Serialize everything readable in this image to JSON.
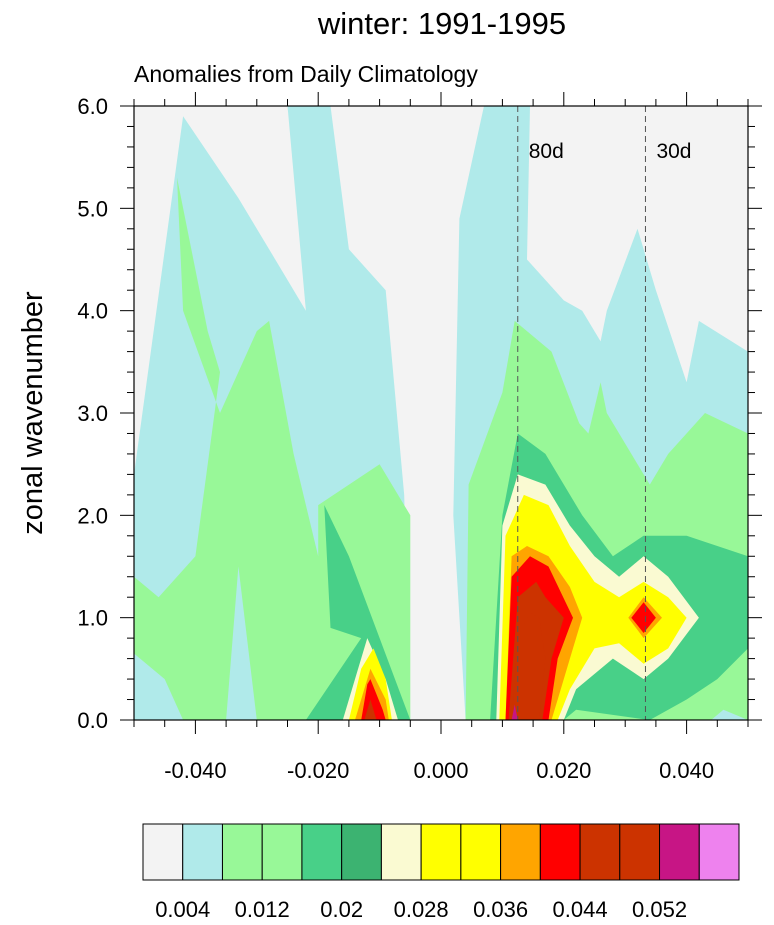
{
  "chart_data": {
    "type": "heatmap",
    "subtype": "filled-contour wavenumber-frequency spectrum",
    "title": "winter: 1991-1995",
    "subtitle": "Anomalies from Daily Climatology",
    "xlabel": "",
    "ylabel": "zonal wavenumber",
    "xlim": [
      -0.05,
      0.05
    ],
    "ylim": [
      0,
      6
    ],
    "x_ticks": [
      -0.04,
      -0.02,
      0.0,
      0.02,
      0.04
    ],
    "x_tick_labels": [
      "-0.040",
      "-0.020",
      "0.000",
      "0.020",
      "0.040"
    ],
    "y_ticks": [
      0,
      1,
      2,
      3,
      4,
      5,
      6
    ],
    "y_tick_labels": [
      "0.0",
      "1.0",
      "2.0",
      "3.0",
      "4.0",
      "5.0",
      "6.0"
    ],
    "reference_lines": [
      {
        "label": "80d",
        "frequency": 0.0125
      },
      {
        "label": "30d",
        "frequency": 0.0333
      }
    ],
    "colorbar": {
      "colors": [
        "#f3f3f3",
        "#b0eaea",
        "#98f898",
        "#98f898",
        "#48d088",
        "#3cb371",
        "#fafad2",
        "#ffff00",
        "#ffff00",
        "#ffa500",
        "#ff0000",
        "#cc3300",
        "#cc3300",
        "#c71585",
        "#ee82ee"
      ],
      "labels": [
        "0.004",
        "0.012",
        "0.02",
        "0.028",
        "0.036",
        "0.044",
        "0.052"
      ]
    },
    "contour_regions": [
      {
        "level": 1,
        "polygon": [
          [
            -0.05,
            0
          ],
          [
            -0.05,
            2.4
          ],
          [
            -0.042,
            5.9
          ],
          [
            -0.033,
            5.1
          ],
          [
            -0.026,
            4.4
          ],
          [
            -0.022,
            4.0
          ],
          [
            -0.025,
            6.0
          ],
          [
            -0.018,
            6.0
          ],
          [
            -0.015,
            4.6
          ],
          [
            -0.009,
            4.2
          ],
          [
            -0.006,
            2.2
          ],
          [
            -0.005,
            0
          ],
          [
            0.004,
            0
          ],
          [
            0.002,
            2.0
          ],
          [
            0.003,
            4.9
          ],
          [
            0.007,
            6.0
          ],
          [
            0.0145,
            6.0
          ],
          [
            0.014,
            4.5
          ],
          [
            0.02,
            4.1
          ],
          [
            0.023,
            4.0
          ],
          [
            0.026,
            3.7
          ],
          [
            0.027,
            4.0
          ],
          [
            0.032,
            4.8
          ],
          [
            0.035,
            4.2
          ],
          [
            0.04,
            3.3
          ],
          [
            0.042,
            3.9
          ],
          [
            0.05,
            3.6
          ],
          [
            0.05,
            0
          ]
        ]
      },
      {
        "level": 2,
        "polygon": [
          [
            -0.05,
            0.65
          ],
          [
            -0.05,
            1.4
          ],
          [
            -0.046,
            1.2
          ],
          [
            -0.04,
            1.6
          ],
          [
            -0.036,
            3.4
          ],
          [
            -0.038,
            3.8
          ],
          [
            -0.043,
            5.3
          ],
          [
            -0.042,
            4.0
          ],
          [
            -0.036,
            3.0
          ],
          [
            -0.03,
            3.8
          ],
          [
            -0.028,
            3.9
          ],
          [
            -0.024,
            2.6
          ],
          [
            -0.02,
            1.6
          ],
          [
            -0.02,
            2.1
          ],
          [
            -0.01,
            2.5
          ],
          [
            -0.005,
            2.0
          ],
          [
            -0.005,
            0
          ],
          [
            -0.03,
            0
          ],
          [
            -0.033,
            1.5
          ],
          [
            -0.035,
            0
          ],
          [
            -0.042,
            0
          ],
          [
            -0.045,
            0.4
          ]
        ]
      },
      {
        "level": 2,
        "polygon": [
          [
            0.004,
            0
          ],
          [
            0.0045,
            2.3
          ],
          [
            0.01,
            3.2
          ],
          [
            0.012,
            3.9
          ],
          [
            0.018,
            3.6
          ],
          [
            0.0225,
            2.9
          ],
          [
            0.024,
            2.8
          ],
          [
            0.026,
            3.3
          ],
          [
            0.027,
            3.0
          ],
          [
            0.034,
            2.3
          ],
          [
            0.037,
            2.6
          ],
          [
            0.043,
            3.0
          ],
          [
            0.05,
            2.8
          ],
          [
            0.05,
            0
          ],
          [
            0.046,
            0.1
          ],
          [
            0.044,
            0
          ]
        ]
      },
      {
        "level": 4,
        "polygon": [
          [
            -0.022,
            0
          ],
          [
            -0.013,
            0.8
          ],
          [
            -0.018,
            0.9
          ],
          [
            -0.019,
            2.1
          ],
          [
            -0.015,
            1.6
          ],
          [
            -0.01,
            0.8
          ],
          [
            -0.005,
            0
          ]
        ]
      },
      {
        "level": 4,
        "polygon": [
          [
            0.008,
            0
          ],
          [
            0.01,
            2.0
          ],
          [
            0.0125,
            2.8
          ],
          [
            0.017,
            2.6
          ],
          [
            0.023,
            2.0
          ],
          [
            0.028,
            1.6
          ],
          [
            0.033,
            1.8
          ],
          [
            0.04,
            1.8
          ],
          [
            0.05,
            1.6
          ],
          [
            0.05,
            0.7
          ],
          [
            0.045,
            0.4
          ],
          [
            0.04,
            0.2
          ],
          [
            0.034,
            0
          ],
          [
            0.022,
            0.1
          ],
          [
            0.02,
            0
          ]
        ]
      },
      {
        "level": 6,
        "polygon": [
          [
            -0.016,
            0
          ],
          [
            -0.014,
            0.4
          ],
          [
            -0.012,
            0.8
          ],
          [
            -0.009,
            0.4
          ],
          [
            -0.007,
            0
          ]
        ]
      },
      {
        "level": 6,
        "polygon": [
          [
            0.009,
            0
          ],
          [
            0.01,
            1.9
          ],
          [
            0.0125,
            2.4
          ],
          [
            0.017,
            2.3
          ],
          [
            0.021,
            1.9
          ],
          [
            0.025,
            1.6
          ],
          [
            0.029,
            1.4
          ],
          [
            0.033,
            1.6
          ],
          [
            0.037,
            1.4
          ],
          [
            0.042,
            1.0
          ],
          [
            0.037,
            0.6
          ],
          [
            0.033,
            0.4
          ],
          [
            0.028,
            0.6
          ],
          [
            0.022,
            0.3
          ],
          [
            0.02,
            0
          ]
        ]
      },
      {
        "level": 7,
        "polygon": [
          [
            -0.015,
            0
          ],
          [
            -0.013,
            0.5
          ],
          [
            -0.011,
            0.7
          ],
          [
            -0.009,
            0.4
          ],
          [
            -0.008,
            0
          ]
        ]
      },
      {
        "level": 7,
        "polygon": [
          [
            0.0095,
            0
          ],
          [
            0.0105,
            1.8
          ],
          [
            0.0135,
            2.2
          ],
          [
            0.0175,
            2.1
          ],
          [
            0.021,
            1.7
          ],
          [
            0.025,
            1.35
          ],
          [
            0.029,
            1.2
          ],
          [
            0.033,
            1.35
          ],
          [
            0.037,
            1.2
          ],
          [
            0.04,
            1.0
          ],
          [
            0.037,
            0.7
          ],
          [
            0.033,
            0.55
          ],
          [
            0.029,
            0.75
          ],
          [
            0.025,
            0.7
          ],
          [
            0.021,
            0.3
          ],
          [
            0.019,
            0
          ]
        ]
      },
      {
        "level": 9,
        "polygon": [
          [
            0.0105,
            0
          ],
          [
            0.0115,
            1.6
          ],
          [
            0.014,
            1.7
          ],
          [
            0.0175,
            1.6
          ],
          [
            0.021,
            1.3
          ],
          [
            0.023,
            1.0
          ],
          [
            0.021,
            0.6
          ],
          [
            0.019,
            0.2
          ],
          [
            0.018,
            0
          ]
        ]
      },
      {
        "level": 9,
        "polygon": [
          [
            -0.014,
            0
          ],
          [
            -0.012,
            0.4
          ],
          [
            -0.0115,
            0.5
          ],
          [
            -0.009,
            0.2
          ],
          [
            -0.0085,
            0
          ]
        ]
      },
      {
        "level": 9,
        "polygon": [
          [
            0.0305,
            1.0
          ],
          [
            0.033,
            1.2
          ],
          [
            0.036,
            1.0
          ],
          [
            0.033,
            0.8
          ]
        ]
      },
      {
        "level": 10,
        "polygon": [
          [
            0.0105,
            0
          ],
          [
            0.0115,
            1.4
          ],
          [
            0.0145,
            1.6
          ],
          [
            0.0175,
            1.5
          ],
          [
            0.0215,
            1.0
          ],
          [
            0.019,
            0.6
          ],
          [
            0.0175,
            0
          ]
        ]
      },
      {
        "level": 10,
        "polygon": [
          [
            -0.013,
            0
          ],
          [
            -0.012,
            0.35
          ],
          [
            -0.0115,
            0.4
          ],
          [
            -0.0095,
            0.1
          ],
          [
            -0.009,
            0
          ]
        ]
      },
      {
        "level": 10,
        "polygon": [
          [
            0.031,
            1.0
          ],
          [
            0.033,
            1.15
          ],
          [
            0.035,
            1.0
          ],
          [
            0.033,
            0.85
          ]
        ]
      },
      {
        "level": 11,
        "polygon": [
          [
            0.011,
            0
          ],
          [
            0.0125,
            1.2
          ],
          [
            0.0155,
            1.35
          ],
          [
            0.017,
            1.2
          ],
          [
            0.02,
            1.0
          ],
          [
            0.018,
            0.6
          ],
          [
            0.0165,
            0
          ]
        ]
      },
      {
        "level": 11,
        "polygon": [
          [
            -0.0125,
            0
          ],
          [
            -0.0115,
            0.2
          ],
          [
            -0.0105,
            0
          ]
        ]
      },
      {
        "level": 12,
        "polygon": [
          [
            0.0115,
            0
          ],
          [
            0.0125,
            0.8
          ],
          [
            0.0145,
            1.05
          ],
          [
            0.016,
            1.0
          ],
          [
            0.017,
            0.6
          ],
          [
            0.016,
            0
          ]
        ]
      },
      {
        "level": 12,
        "polygon": [
          [
            -0.012,
            0
          ],
          [
            -0.0115,
            0.12
          ],
          [
            -0.011,
            0
          ]
        ]
      },
      {
        "level": 13,
        "polygon": [
          [
            0.0115,
            0
          ],
          [
            0.012,
            0.15
          ],
          [
            0.0125,
            0
          ]
        ]
      }
    ]
  }
}
